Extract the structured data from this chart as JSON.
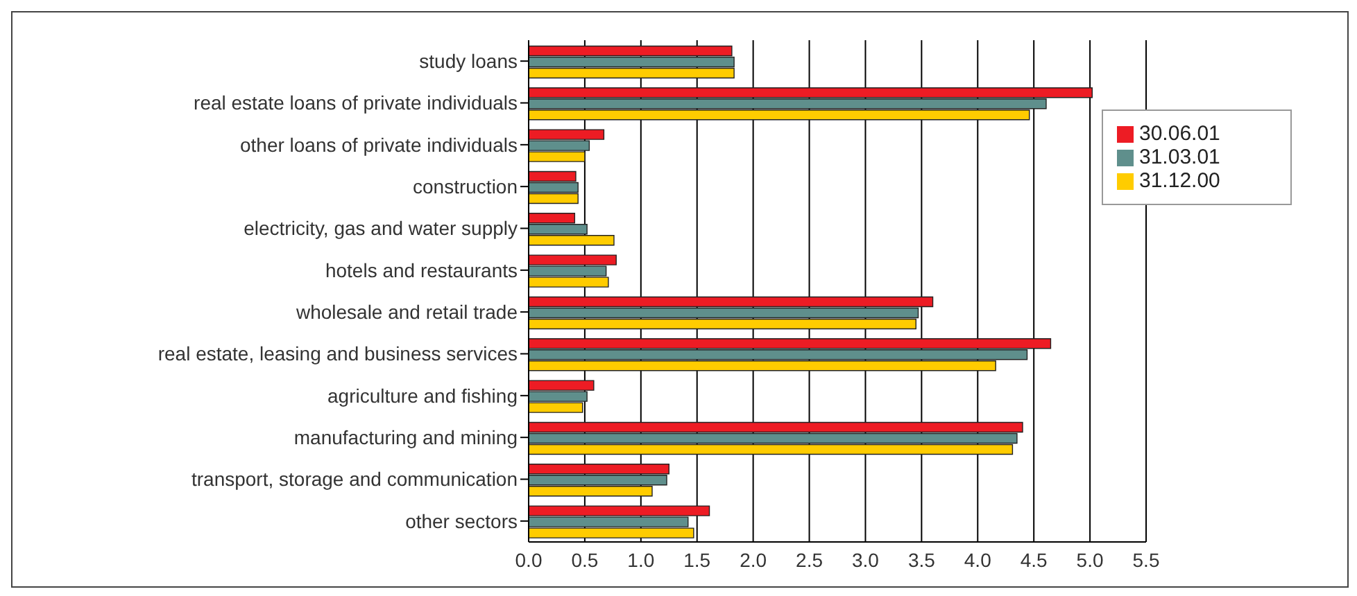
{
  "chart_data": {
    "type": "bar",
    "orientation": "horizontal",
    "categories": [
      "study loans",
      "real estate loans of private individuals",
      "other loans of private individuals",
      "construction",
      "electricity, gas and water supply",
      "hotels and restaurants",
      "wholesale and retail trade",
      "real estate, leasing and business services",
      "agriculture and fishing",
      "manufacturing and mining",
      "transport, storage and communication",
      "other sectors"
    ],
    "series": [
      {
        "name": "30.06.01",
        "color": "#ed1c24",
        "values": [
          1.81,
          5.02,
          0.67,
          0.42,
          0.41,
          0.78,
          3.6,
          4.65,
          0.58,
          4.4,
          1.25,
          1.61
        ]
      },
      {
        "name": "31.03.01",
        "color": "#5f8f8c",
        "values": [
          1.83,
          4.61,
          0.54,
          0.44,
          0.52,
          0.69,
          3.47,
          4.44,
          0.52,
          4.35,
          1.23,
          1.42
        ]
      },
      {
        "name": "31.12.00",
        "color": "#ffcc00",
        "values": [
          1.83,
          4.46,
          0.5,
          0.44,
          0.76,
          0.71,
          3.45,
          4.16,
          0.48,
          4.31,
          1.1,
          1.47
        ]
      }
    ],
    "xlim": [
      0,
      5.5
    ],
    "xticks": [
      {
        "value": 0,
        "label": "0.0"
      },
      {
        "value": 0.5,
        "label": "0.5"
      },
      {
        "value": 1,
        "label": "1.0"
      },
      {
        "value": 1.5,
        "label": "1.5"
      },
      {
        "value": 2,
        "label": "2.0"
      },
      {
        "value": 2.5,
        "label": "2.5"
      },
      {
        "value": 3,
        "label": "3.0"
      },
      {
        "value": 3.5,
        "label": "3.5"
      },
      {
        "value": 4,
        "label": "4.0"
      },
      {
        "value": 4.5,
        "label": "4.5"
      },
      {
        "value": 5,
        "label": "5.0"
      },
      {
        "value": 5.5,
        "label": "5.5"
      }
    ],
    "grid": "x",
    "legend": "top right"
  }
}
